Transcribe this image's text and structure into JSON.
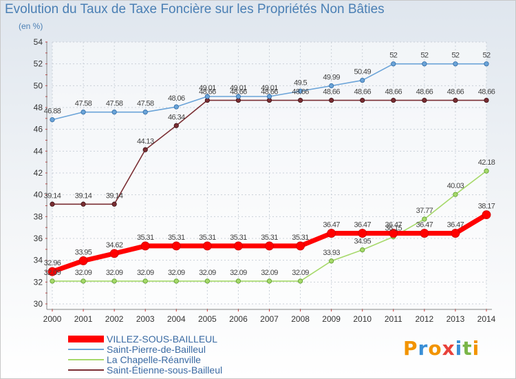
{
  "chart_data": {
    "type": "line",
    "title": "Evolution du Taux de Taxe Foncière sur les Propriétés Non Bâties",
    "subtitle": "(en %)",
    "x": [
      "2000",
      "2001",
      "2002",
      "2003",
      "2004",
      "2005",
      "2006",
      "2007",
      "2008",
      "2009",
      "2010",
      "2011",
      "2012",
      "2013",
      "2014"
    ],
    "ylim": [
      30,
      54
    ],
    "yticks": [
      "30",
      "32",
      "34",
      "36",
      "38",
      "40",
      "42",
      "44",
      "46",
      "48",
      "50",
      "52",
      "54"
    ],
    "grid": true,
    "legend_position": "bottom-left",
    "series": [
      {
        "name": "Saint-Étienne-sous-Bailleul",
        "color": "#7a2e33",
        "labels": [
          "39.14",
          "39.14",
          "39.14",
          "44.13",
          "46.34",
          "48.66",
          "48.66",
          "48.66",
          "48.66",
          "48.66",
          "48.66",
          "48.66",
          "48.66",
          "48.66",
          "48.66"
        ],
        "values": [
          39.14,
          39.14,
          39.14,
          44.13,
          46.34,
          48.66,
          48.66,
          48.66,
          48.66,
          48.66,
          48.66,
          48.66,
          48.66,
          48.66,
          48.66
        ]
      },
      {
        "name": "Saint-Pierre-de-Bailleul",
        "color": "#6aa3d8",
        "labels": [
          "46.88",
          "47.58",
          "47.58",
          "47.58",
          "48.06",
          "49.01",
          "49.01",
          "49.01",
          "49.5",
          "49.99",
          "50.49",
          "52",
          "52",
          "52",
          "52"
        ],
        "values": [
          46.88,
          47.58,
          47.58,
          47.58,
          48.06,
          49.01,
          49.01,
          49.01,
          49.5,
          49.99,
          50.49,
          52,
          52,
          52,
          52
        ]
      },
      {
        "name": "La Chapelle-Réanville",
        "color": "#a6d96a",
        "labels": [
          "32.09",
          "32.09",
          "32.09",
          "32.09",
          "32.09",
          "32.09",
          "32.09",
          "32.09",
          "32.09",
          "33.93",
          "34.95",
          "36.15",
          "37.77",
          "40.03",
          "42.18"
        ],
        "values": [
          32.09,
          32.09,
          32.09,
          32.09,
          32.09,
          32.09,
          32.09,
          32.09,
          32.09,
          33.93,
          34.95,
          36.15,
          37.77,
          40.03,
          42.18
        ]
      },
      {
        "name": "VILLEZ-SOUS-BAILLEUL",
        "color": "#ff0000",
        "labels": [
          "32.96",
          "33.95",
          "34.62",
          "35.31",
          "35.31",
          "35.31",
          "35.31",
          "35.31",
          "35.31",
          "36.47",
          "36.47",
          "36.47",
          "36.47",
          "36.47",
          "38.17"
        ],
        "values": [
          32.96,
          33.95,
          34.62,
          35.31,
          35.31,
          35.31,
          35.31,
          35.31,
          35.31,
          36.47,
          36.47,
          36.47,
          36.47,
          36.47,
          38.17
        ]
      }
    ]
  },
  "legend": [
    {
      "label": "VILLEZ-SOUS-BAILLEUL",
      "color": "#ff0000"
    },
    {
      "label": "Saint-Pierre-de-Bailleul",
      "color": "#6aa3d8"
    },
    {
      "label": "La Chapelle-Réanville",
      "color": "#a6d96a"
    },
    {
      "label": "Saint-Étienne-sous-Bailleul",
      "color": "#7a2e33"
    }
  ],
  "brand": {
    "text": "Proxiti"
  }
}
